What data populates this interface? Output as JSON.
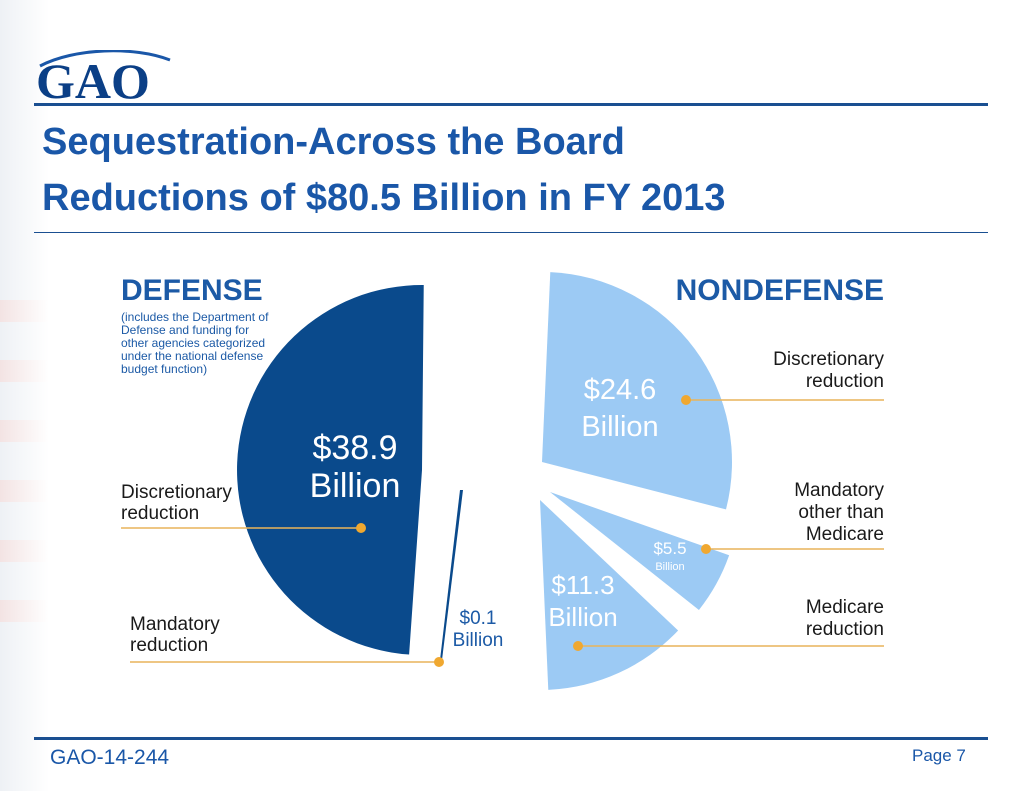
{
  "logo": {
    "text": "GAO"
  },
  "title": {
    "line1": "Sequestration-Across the Board",
    "line2": "Reductions of $80.5 Billion in FY 2013"
  },
  "colors": {
    "title_blue": "#1a57a8",
    "defense_navy": "#0a4a8c",
    "nondefense_light": "#9ccaf4",
    "leader_line": "#e9b45a",
    "leader_dot": "#f0a830",
    "rule_blue": "#1a4f91"
  },
  "chart_data": [
    {
      "type": "pie",
      "title": "DEFENSE",
      "subtitle": [
        "(includes the Department of",
        "Defense and funding for",
        "other agencies categorized",
        "under the national defense",
        "budget function)"
      ],
      "slices": [
        {
          "label": [
            "Discretionary",
            "reduction"
          ],
          "value": 38.9,
          "value_text": "$38.9",
          "unit_text": "Billion",
          "color": "#0a4a8c"
        },
        {
          "label": [
            "Mandatory",
            "reduction"
          ],
          "value": 0.1,
          "value_text": "$0.1",
          "unit_text": "Billion",
          "color": "#0a4a8c"
        }
      ]
    },
    {
      "type": "pie",
      "title": "NONDEFENSE",
      "slices": [
        {
          "label": [
            "Discretionary",
            "reduction"
          ],
          "value": 24.6,
          "value_text": "$24.6",
          "unit_text": "Billion",
          "color": "#9ccaf4"
        },
        {
          "label": [
            "Mandatory",
            "other than",
            "Medicare"
          ],
          "value": 5.5,
          "value_text": "$5.5",
          "unit_text": "Billion",
          "color": "#9ccaf4"
        },
        {
          "label": [
            "Medicare",
            "reduction"
          ],
          "value": 11.3,
          "value_text": "$11.3",
          "unit_text": "Billion",
          "color": "#9ccaf4"
        }
      ]
    }
  ],
  "footer": {
    "report_id": "GAO-14-244",
    "page": "Page 7"
  }
}
